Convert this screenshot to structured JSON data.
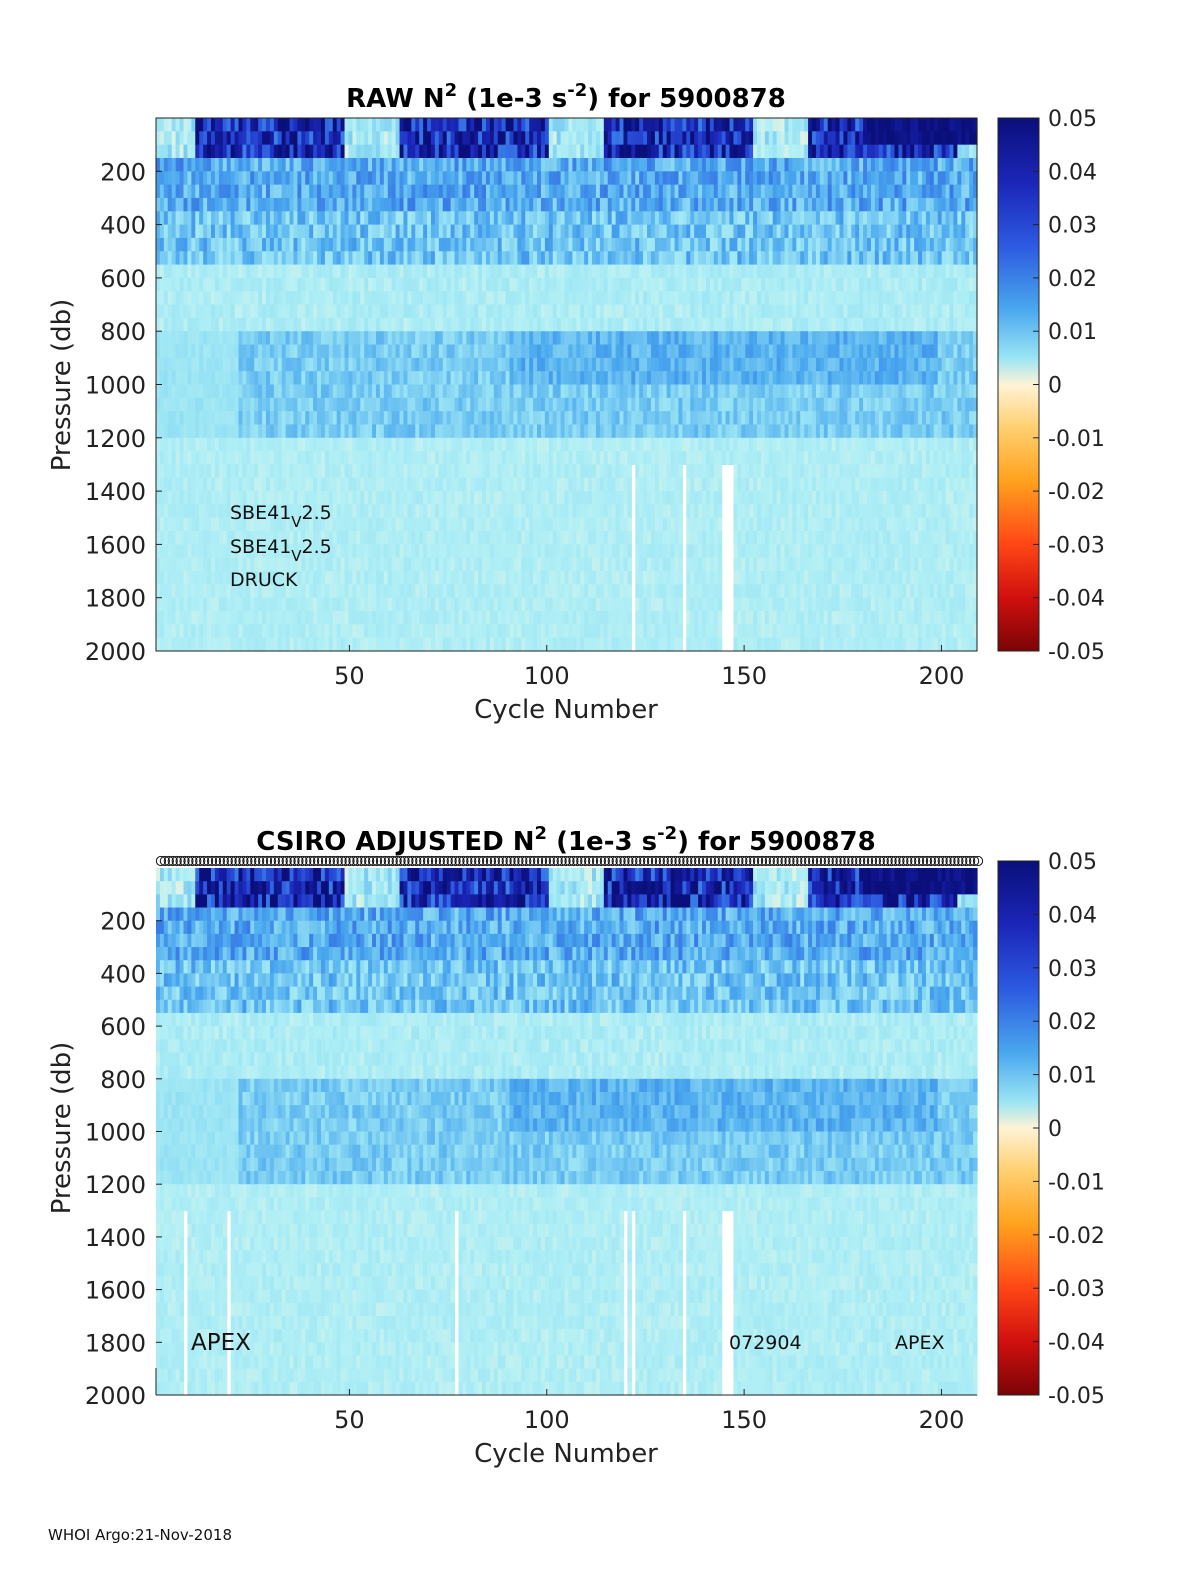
{
  "footer": "WHOI Argo:21-Nov-2018",
  "colorbar": {
    "ticks": [
      "0.05",
      "0.04",
      "0.03",
      "0.02",
      "0.01",
      "0",
      "-0.01",
      "-0.02",
      "-0.03",
      "-0.04",
      "-0.05"
    ],
    "clim": [
      -0.05,
      0.05
    ],
    "colors": {
      "max": "#0a0f7a",
      "high": "#2c46d4",
      "mid_high": "#3b8fe8",
      "low_pos": "#7fd6f4",
      "zero": "#fff3d6",
      "low_neg": "#ffbe3c",
      "mid_neg": "#ff7a14",
      "neg": "#f0281c",
      "min": "#7a0406"
    }
  },
  "chart_data": [
    {
      "type": "heatmap",
      "title": {
        "main": "RAW N",
        "sup1": "2",
        "mid": " (1e-3 s",
        "sup2": "-2",
        "end": ") for 5900878"
      },
      "xlabel": "Cycle Number",
      "ylabel": "Pressure (db)",
      "xlim": [
        1,
        209
      ],
      "ylim": [
        0,
        2000
      ],
      "y_reversed": true,
      "xticks": [
        "50",
        "100",
        "150",
        "200"
      ],
      "yticks": [
        "200",
        "400",
        "600",
        "800",
        "1000",
        "1200",
        "1400",
        "1600",
        "1800",
        "2000"
      ],
      "annotations": [
        {
          "base": "SBE41",
          "sub": "V",
          "rest": "2.5"
        },
        {
          "base": "SBE41",
          "sub": "V",
          "rest": "2.5"
        },
        {
          "base": "DRUCK",
          "sub": "",
          "rest": ""
        }
      ],
      "value_ranges": [
        {
          "p_top": 0,
          "p_bottom": 150,
          "n2_approx": 0.04,
          "note": "strongly stratified near-surface layer, weakening in winter mixing periods"
        },
        {
          "p_top": 150,
          "p_bottom": 550,
          "n2_approx": 0.015
        },
        {
          "p_top": 550,
          "p_bottom": 800,
          "n2_approx": 0.006
        },
        {
          "p_top": 800,
          "p_bottom": 1200,
          "n2_approx": 0.014
        },
        {
          "p_top": 1200,
          "p_bottom": 2000,
          "n2_approx": 0.006
        }
      ],
      "missing_cycles": [
        122,
        135,
        145,
        146,
        147
      ]
    },
    {
      "type": "heatmap",
      "title": {
        "main": "CSIRO  ADJUSTED N",
        "sup1": "2",
        "mid": " (1e-3 s",
        "sup2": "-2",
        "end": ") for 5900878"
      },
      "xlabel": "Cycle Number",
      "ylabel": "Pressure (db)",
      "xlim": [
        1,
        209
      ],
      "ylim": [
        0,
        2000
      ],
      "y_reversed": true,
      "xticks": [
        "50",
        "100",
        "150",
        "200"
      ],
      "yticks": [
        "200",
        "400",
        "600",
        "800",
        "1000",
        "1200",
        "1400",
        "1600",
        "1800",
        "2000"
      ],
      "labels": {
        "left": "APEX",
        "center": "072904",
        "right": "APEX"
      },
      "cycle_markers": "open circles above every cycle",
      "value_ranges": [
        {
          "p_top": 0,
          "p_bottom": 150,
          "n2_approx": 0.04
        },
        {
          "p_top": 150,
          "p_bottom": 550,
          "n2_approx": 0.015
        },
        {
          "p_top": 550,
          "p_bottom": 800,
          "n2_approx": 0.006
        },
        {
          "p_top": 800,
          "p_bottom": 1200,
          "n2_approx": 0.014
        },
        {
          "p_top": 1200,
          "p_bottom": 2000,
          "n2_approx": 0.006
        }
      ],
      "missing_cycles": [
        8,
        19,
        77,
        120,
        122,
        135,
        145,
        146,
        147
      ]
    }
  ]
}
